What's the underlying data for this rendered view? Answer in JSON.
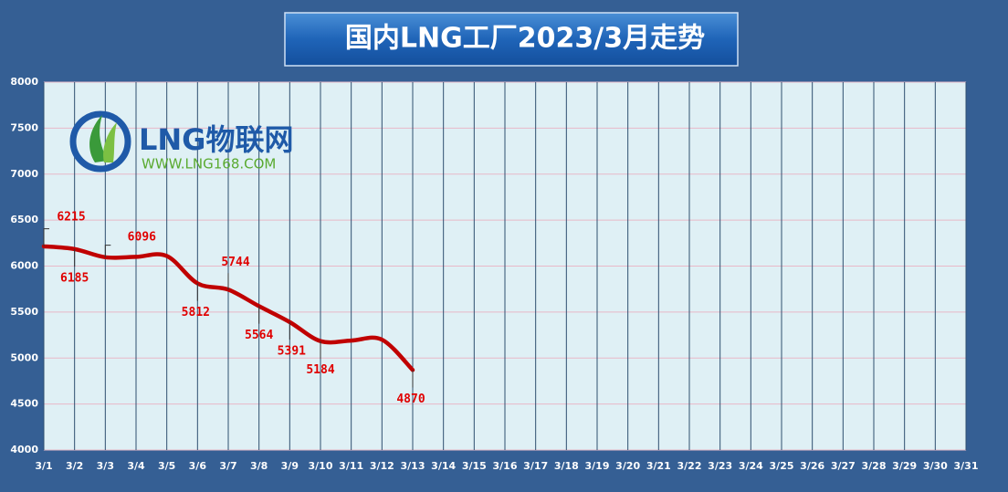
{
  "chart_data": {
    "type": "line",
    "title": "国内LNG工厂2023/3月走势",
    "logo": {
      "name": "LNG物联网",
      "url": "WWW.LNG168.COM"
    },
    "categories": [
      "3/1",
      "3/2",
      "3/3",
      "3/4",
      "3/5",
      "3/6",
      "3/7",
      "3/8",
      "3/9",
      "3/10",
      "3/11",
      "3/12",
      "3/13",
      "3/14",
      "3/15",
      "3/16",
      "3/17",
      "3/18",
      "3/19",
      "3/20",
      "3/21",
      "3/22",
      "3/23",
      "3/24",
      "3/25",
      "3/26",
      "3/27",
      "3/28",
      "3/29",
      "3/30",
      "3/31"
    ],
    "series": [
      {
        "name": "LNG",
        "color": "#c00000",
        "values": [
          6215,
          6185,
          6096,
          6100,
          6110,
          5812,
          5744,
          5564,
          5391,
          5184,
          5190,
          5200,
          4870,
          null,
          null,
          null,
          null,
          null,
          null,
          null,
          null,
          null,
          null,
          null,
          null,
          null,
          null,
          null,
          null,
          null,
          null
        ],
        "value_labels": [
          "6215",
          "6185",
          "6096",
          null,
          null,
          "5812",
          "5744",
          "5564",
          "5391",
          "5184",
          null,
          null,
          "4870",
          null,
          null,
          null,
          null,
          null,
          null,
          null,
          null,
          null,
          null,
          null,
          null,
          null,
          null,
          null,
          null,
          null,
          null
        ]
      }
    ],
    "ylim": [
      4000,
      8000
    ],
    "yticks": [
      4000,
      4500,
      5000,
      5500,
      6000,
      6500,
      7000,
      7500,
      8000
    ],
    "grid": true
  }
}
